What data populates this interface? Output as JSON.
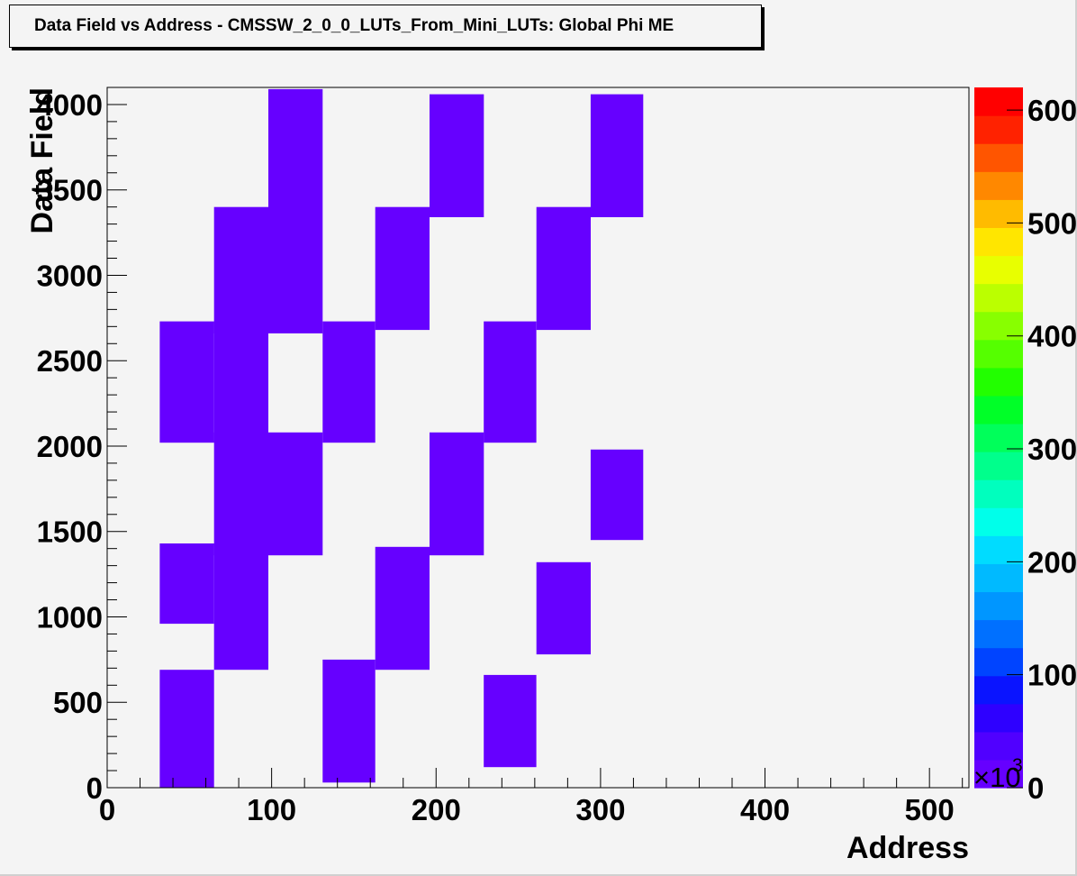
{
  "chart_data": {
    "type": "heatmap",
    "title": "Data Field vs Address - CMSSW_2_0_0_LUTs_From_Mini_LUTs: Global Phi ME",
    "xlabel": "Address",
    "ylabel": "Data Field",
    "xlim": [
      0,
      524
    ],
    "ylim": [
      0,
      4100
    ],
    "x_ticks": [
      "0",
      "100",
      "200",
      "300",
      "400",
      "500"
    ],
    "y_ticks": [
      "0",
      "500",
      "1000",
      "1500",
      "2000",
      "2500",
      "3000",
      "3500",
      "4000"
    ],
    "colorbar": {
      "range": [
        0,
        620000
      ],
      "ticks": [
        "0",
        "100",
        "200",
        "300",
        "400",
        "500",
        "600"
      ],
      "multiplier_base": "×10",
      "multiplier_exponent": "3",
      "palette": [
        "#6600ff",
        "#5000ff",
        "#2e00ff",
        "#0a14ff",
        "#0044ff",
        "#0070ff",
        "#0096ff",
        "#00baff",
        "#00dcff",
        "#00ffea",
        "#00ffbe",
        "#00ff8c",
        "#00ff5a",
        "#00ff28",
        "#22ff00",
        "#55ff00",
        "#88ff00",
        "#bbff00",
        "#e8ff00",
        "#ffe600",
        "#ffbb00",
        "#ff8800",
        "#ff5500",
        "#ff2200",
        "#ff0000"
      ]
    },
    "bin_color": "#6600ff",
    "cells": [
      {
        "x": [
          32,
          65
        ],
        "y": [
          0,
          690
        ]
      },
      {
        "x": [
          32,
          65
        ],
        "y": [
          960,
          1430
        ]
      },
      {
        "x": [
          32,
          65
        ],
        "y": [
          2020,
          2730
        ]
      },
      {
        "x": [
          65,
          98
        ],
        "y": [
          690,
          1430
        ]
      },
      {
        "x": [
          65,
          98
        ],
        "y": [
          1360,
          2080
        ]
      },
      {
        "x": [
          65,
          98
        ],
        "y": [
          2020,
          2730
        ]
      },
      {
        "x": [
          65,
          98
        ],
        "y": [
          2660,
          3400
        ]
      },
      {
        "x": [
          98,
          131
        ],
        "y": [
          1360,
          2080
        ]
      },
      {
        "x": [
          98,
          131
        ],
        "y": [
          2660,
          4090
        ]
      },
      {
        "x": [
          131,
          163
        ],
        "y": [
          30,
          750
        ]
      },
      {
        "x": [
          131,
          163
        ],
        "y": [
          2020,
          2730
        ]
      },
      {
        "x": [
          163,
          196
        ],
        "y": [
          690,
          1410
        ]
      },
      {
        "x": [
          163,
          196
        ],
        "y": [
          2680,
          3400
        ]
      },
      {
        "x": [
          196,
          229
        ],
        "y": [
          1360,
          2080
        ]
      },
      {
        "x": [
          196,
          229
        ],
        "y": [
          3340,
          4060
        ]
      },
      {
        "x": [
          229,
          261
        ],
        "y": [
          120,
          660
        ]
      },
      {
        "x": [
          229,
          261
        ],
        "y": [
          2020,
          2730
        ]
      },
      {
        "x": [
          261,
          294
        ],
        "y": [
          780,
          1320
        ]
      },
      {
        "x": [
          261,
          294
        ],
        "y": [
          2680,
          3400
        ]
      },
      {
        "x": [
          294,
          326
        ],
        "y": [
          1450,
          1980
        ]
      },
      {
        "x": [
          294,
          326
        ],
        "y": [
          3340,
          4060
        ]
      }
    ]
  }
}
